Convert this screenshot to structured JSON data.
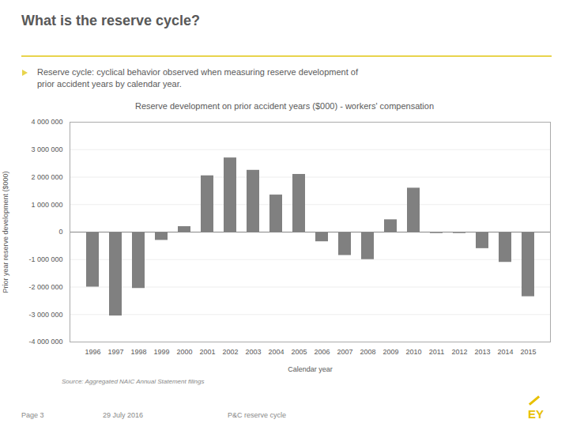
{
  "chart_data": {
    "type": "bar",
    "title": "Reserve development on prior accident years ($000) - workers' compensation",
    "xlabel": "Calendar year",
    "ylabel": "Prior year reserve development ($000)",
    "categories": [
      "1996",
      "1997",
      "1998",
      "1999",
      "2000",
      "2001",
      "2002",
      "2003",
      "2004",
      "2005",
      "2006",
      "2007",
      "2008",
      "2009",
      "2010",
      "2011",
      "2012",
      "2013",
      "2014",
      "2015"
    ],
    "values": [
      -2000000,
      -3050000,
      -2050000,
      -300000,
      200000,
      2050000,
      2700000,
      2250000,
      1350000,
      2100000,
      -350000,
      -850000,
      -1000000,
      450000,
      1600000,
      -50000,
      -50000,
      -600000,
      -1100000,
      -2350000
    ],
    "color": "#808080",
    "ylim": [
      -4000000,
      4000000
    ],
    "yticks": [
      {
        "value": -4000000,
        "label": "-4 000 000"
      },
      {
        "value": -3000000,
        "label": "-3 000 000"
      },
      {
        "value": -2000000,
        "label": "-2 000 000"
      },
      {
        "value": -1000000,
        "label": "-1 000 000"
      },
      0,
      {
        "value": 1000000,
        "label": "1 000 000"
      },
      {
        "value": 2000000,
        "label": "2 000 000"
      },
      {
        "value": 3000000,
        "label": "3 000 000"
      },
      {
        "value": 4000000,
        "label": "4 000 000"
      }
    ],
    "grid": true,
    "annotations": [
      "What is the reserve cycle?",
      "Reserve cycle: cyclical behavior observed when measuring reserve development of\nprior accident years by calendar year.",
      "Source: Aggregated NAIC Annual Statement filings",
      "Page 3",
      "29 July 2016",
      "P&C reserve cycle",
      "EY"
    ]
  }
}
